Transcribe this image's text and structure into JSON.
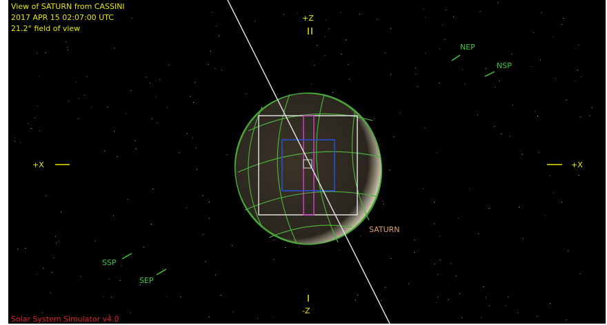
{
  "header": {
    "line1": "View of SATURN from CASSINI",
    "line2": "2017 APR 15 02:07:00 UTC",
    "line3": "21.2° field of view"
  },
  "labels": {
    "top_axis": "+Z",
    "bottom_axis": "-Z",
    "left_axis": "+X",
    "right_axis": "+X",
    "nep": "NEP",
    "nsp": "NSP",
    "ssp": "SSP",
    "sep": "SEP",
    "target": "SATURN"
  },
  "footer": "Solar System Simulator v4.0"
}
